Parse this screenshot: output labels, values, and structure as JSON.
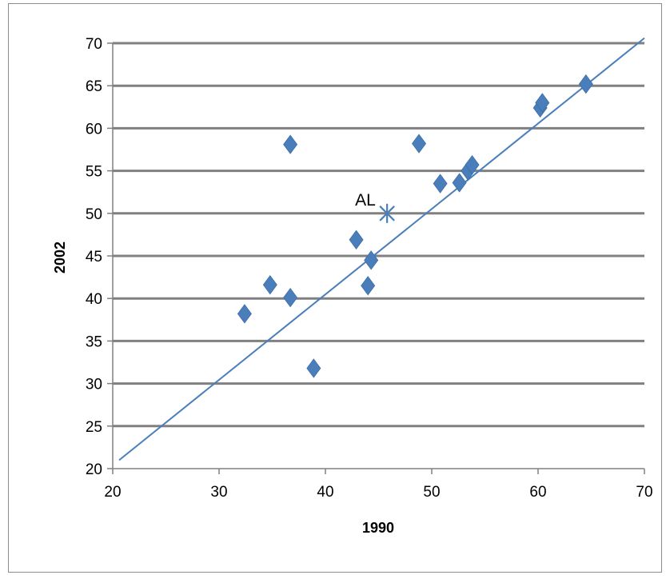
{
  "chart_data": {
    "type": "scatter",
    "title": "",
    "xlabel": "1990",
    "ylabel": "2002",
    "xlim": [
      20,
      70
    ],
    "ylim": [
      20,
      70
    ],
    "xticks": [
      20,
      30,
      40,
      50,
      60,
      70
    ],
    "yticks": [
      20,
      25,
      30,
      35,
      40,
      45,
      50,
      55,
      60,
      65,
      70
    ],
    "grid": "horizontal",
    "colors": {
      "marker": "#4a7ebb",
      "line": "#4a7ebb",
      "grid": "#808080",
      "axis": "#808080"
    },
    "series": [
      {
        "marker": "diamond",
        "points": [
          {
            "x": 32.4,
            "y": 38.2
          },
          {
            "x": 34.8,
            "y": 41.6
          },
          {
            "x": 36.7,
            "y": 58.1
          },
          {
            "x": 36.7,
            "y": 40.1
          },
          {
            "x": 38.9,
            "y": 31.8
          },
          {
            "x": 42.9,
            "y": 46.9
          },
          {
            "x": 44.0,
            "y": 41.5
          },
          {
            "x": 44.3,
            "y": 44.5
          },
          {
            "x": 48.8,
            "y": 58.2
          },
          {
            "x": 50.8,
            "y": 53.5
          },
          {
            "x": 52.6,
            "y": 53.6
          },
          {
            "x": 53.4,
            "y": 55.0
          },
          {
            "x": 53.8,
            "y": 55.7
          },
          {
            "x": 60.2,
            "y": 62.4
          },
          {
            "x": 60.4,
            "y": 63.0
          },
          {
            "x": 64.5,
            "y": 65.2
          }
        ]
      },
      {
        "marker": "asterisk",
        "points": [
          {
            "x": 45.8,
            "y": 50.0,
            "label": "AL"
          }
        ]
      }
    ],
    "reference_line": {
      "x": [
        20.6,
        70.0
      ],
      "y": [
        21.0,
        70.6
      ]
    }
  }
}
